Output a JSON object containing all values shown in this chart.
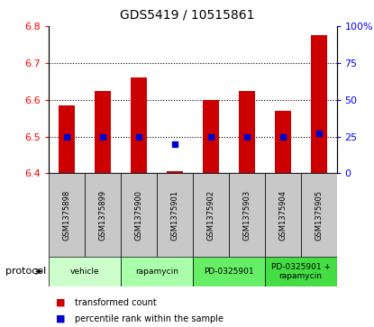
{
  "title": "GDS5419 / 10515861",
  "samples": [
    "GSM1375898",
    "GSM1375899",
    "GSM1375900",
    "GSM1375901",
    "GSM1375902",
    "GSM1375903",
    "GSM1375904",
    "GSM1375905"
  ],
  "transformed_counts": [
    6.585,
    6.625,
    6.66,
    6.405,
    6.6,
    6.625,
    6.57,
    6.775
  ],
  "percentile_ranks": [
    25,
    25,
    25,
    20,
    25,
    25,
    25,
    27
  ],
  "bar_bottom": 6.4,
  "ylim_left": [
    6.4,
    6.8
  ],
  "ylim_right": [
    0,
    100
  ],
  "yticks_left": [
    6.4,
    6.5,
    6.6,
    6.7,
    6.8
  ],
  "yticks_right": [
    0,
    25,
    50,
    75,
    100
  ],
  "ytick_labels_right": [
    "0",
    "25",
    "50",
    "75",
    "100%"
  ],
  "bar_color": "#cc0000",
  "dot_color": "#0000cc",
  "bar_width": 0.45,
  "proto_colors": [
    "#ccffcc",
    "#aaffaa",
    "#66ee66",
    "#44dd44"
  ],
  "proto_labels": [
    "vehicle",
    "rapamycin",
    "PD-0325901",
    "PD-0325901 +\nrapamycin"
  ],
  "proto_starts": [
    0,
    2,
    4,
    6
  ],
  "proto_ends": [
    2,
    4,
    6,
    8
  ],
  "sample_box_color": "#c8c8c8",
  "legend_bar_label": "transformed count",
  "legend_dot_label": "percentile rank within the sample",
  "protocol_label": "protocol"
}
